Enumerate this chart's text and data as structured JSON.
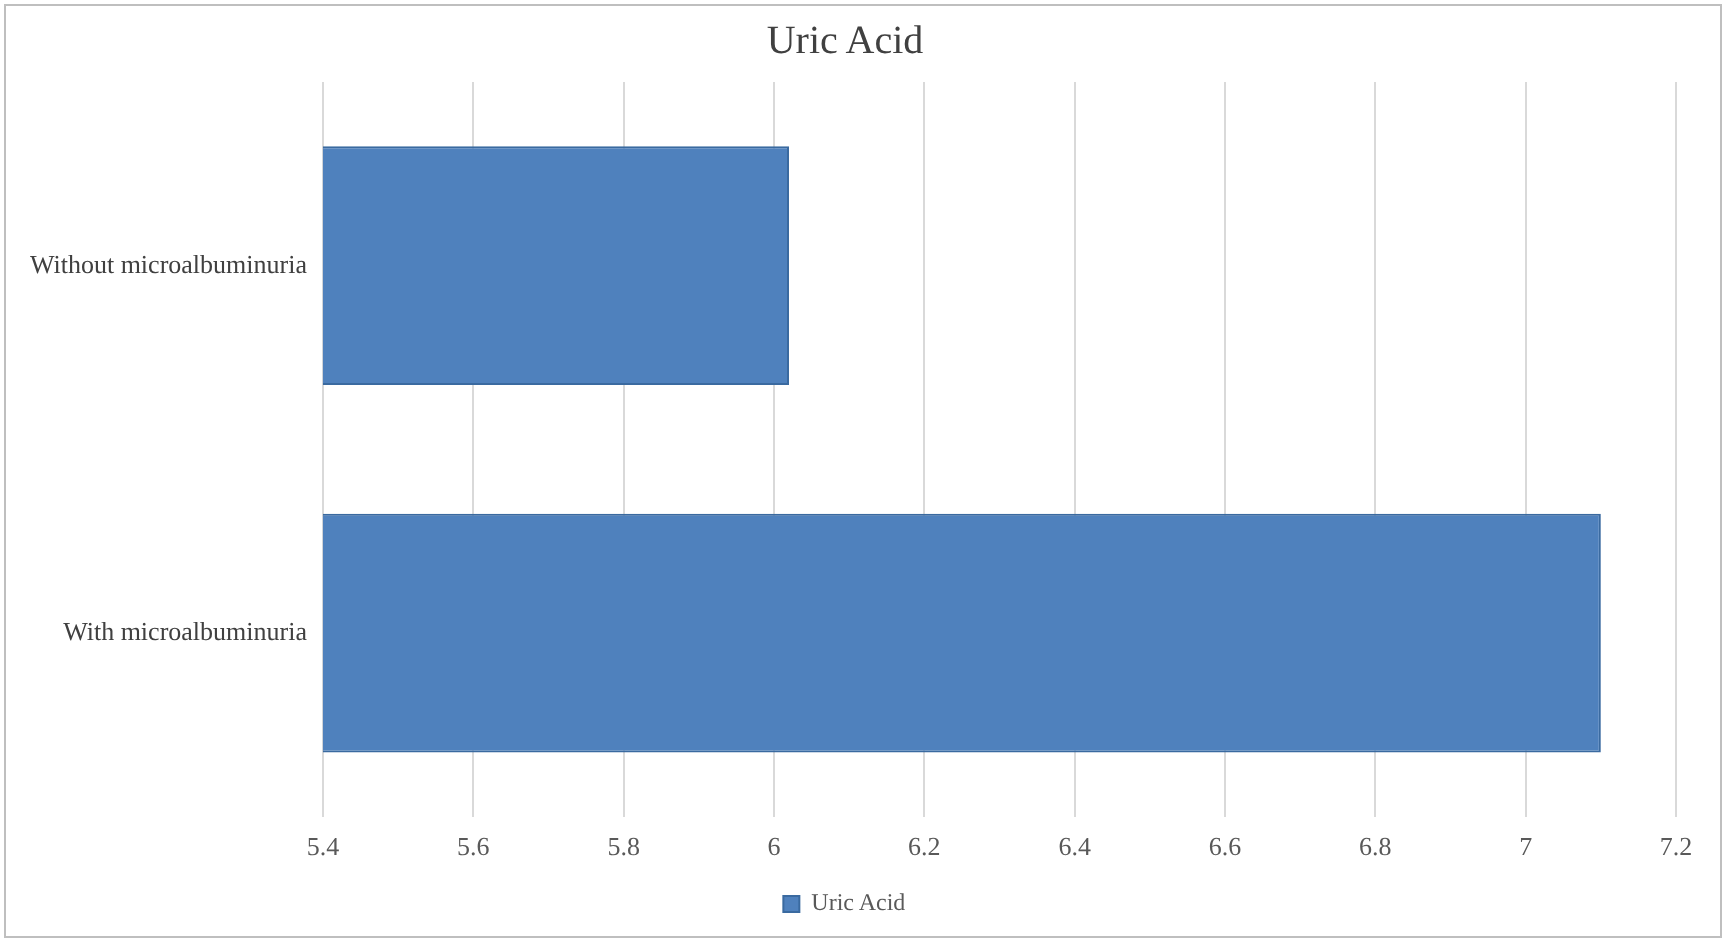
{
  "chart_data": {
    "type": "bar",
    "orientation": "horizontal",
    "title": "Uric Acid",
    "categories": [
      "Without microalbuminuria",
      "With microalbuminuria"
    ],
    "series": [
      {
        "name": "Uric Acid",
        "color": "#4f81bd",
        "values": [
          6.02,
          7.1
        ]
      }
    ],
    "xlim": [
      5.4,
      7.2
    ],
    "xticks": [
      5.4,
      5.6,
      5.8,
      6,
      6.2,
      6.4,
      6.6,
      6.8,
      7,
      7.2
    ],
    "grid": "x",
    "legend": "bottom"
  }
}
